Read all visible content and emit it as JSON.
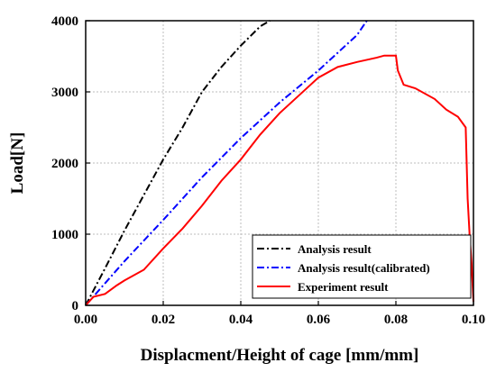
{
  "chart_data": {
    "type": "line",
    "xlabel": "Displacment/Height of cage [mm/mm]",
    "ylabel": "Load[N]",
    "xlim": [
      0,
      0.1
    ],
    "ylim": [
      0,
      4000
    ],
    "xticks": [
      0.0,
      0.02,
      0.04,
      0.06,
      0.08,
      0.1
    ],
    "xtick_labels": [
      "0.00",
      "0.02",
      "0.04",
      "0.06",
      "0.08",
      "0.10"
    ],
    "yticks": [
      0,
      1000,
      2000,
      3000,
      4000
    ],
    "ytick_labels": [
      "0",
      "1000",
      "2000",
      "3000",
      "4000"
    ],
    "grid": true,
    "legend_position": "bottom-right",
    "series": [
      {
        "name": "Analysis result",
        "color": "#000000",
        "style": "dash-dot",
        "x": [
          0,
          0.005,
          0.01,
          0.015,
          0.02,
          0.025,
          0.03,
          0.035,
          0.04,
          0.045,
          0.0475
        ],
        "y": [
          0,
          520,
          1050,
          1550,
          2050,
          2500,
          3000,
          3350,
          3650,
          3920,
          4000
        ]
      },
      {
        "name": "Analysis result(calibrated)",
        "color": "#0000ff",
        "style": "dash-dot",
        "x": [
          0,
          0.01,
          0.02,
          0.03,
          0.04,
          0.05,
          0.06,
          0.07,
          0.0725
        ],
        "y": [
          0,
          620,
          1200,
          1800,
          2350,
          2850,
          3300,
          3800,
          4000
        ]
      },
      {
        "name": "Experiment result",
        "color": "#ff0000",
        "style": "solid",
        "x": [
          0,
          0.002,
          0.005,
          0.008,
          0.01,
          0.015,
          0.02,
          0.025,
          0.03,
          0.035,
          0.04,
          0.045,
          0.05,
          0.055,
          0.06,
          0.065,
          0.07,
          0.075,
          0.077,
          0.08,
          0.0805,
          0.082,
          0.085,
          0.09,
          0.093,
          0.096,
          0.098,
          0.0985,
          0.099,
          0.0995,
          0.1
        ],
        "y": [
          0,
          120,
          160,
          280,
          350,
          500,
          800,
          1080,
          1400,
          1750,
          2050,
          2400,
          2700,
          2950,
          3200,
          3350,
          3420,
          3480,
          3510,
          3510,
          3300,
          3100,
          3050,
          2900,
          2750,
          2650,
          2500,
          1500,
          1000,
          600,
          50
        ]
      }
    ]
  }
}
